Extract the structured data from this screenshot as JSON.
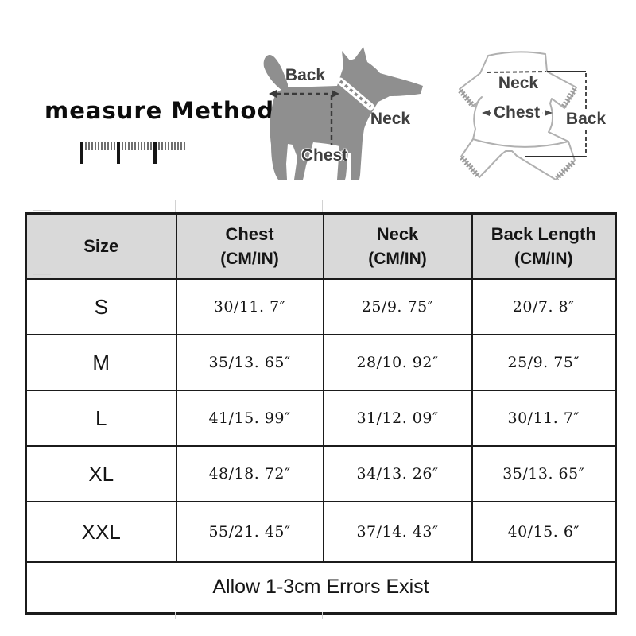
{
  "title": "measure Method",
  "diagram": {
    "dog": {
      "back_label": "Back",
      "neck_label": "Neck",
      "chest_label": "Chest"
    },
    "garment": {
      "neck_label": "Neck",
      "chest_label": "Chest",
      "back_label": "Back"
    }
  },
  "size_table": {
    "headers": [
      {
        "label": "Size",
        "sub": ""
      },
      {
        "label": "Chest",
        "sub": "(CM/IN)"
      },
      {
        "label": "Neck",
        "sub": "(CM/IN)"
      },
      {
        "label": "Back Length",
        "sub": "(CM/IN)"
      }
    ],
    "rows": [
      {
        "size": "S",
        "chest": "30/11. 7″",
        "neck": "25/9. 75″",
        "back_length": "20/7. 8″"
      },
      {
        "size": "M",
        "chest": "35/13. 65″",
        "neck": "28/10. 92″",
        "back_length": "25/9. 75″"
      },
      {
        "size": "L",
        "chest": "41/15. 99″",
        "neck": "31/12. 09″",
        "back_length": "30/11. 7″"
      },
      {
        "size": "XL",
        "chest": "48/18. 72″",
        "neck": "34/13. 26″",
        "back_length": "35/13. 65″"
      },
      {
        "size": "XXL",
        "chest": "55/21. 45″",
        "neck": "37/14. 43″",
        "back_length": "40/15. 6″"
      }
    ],
    "footnote": "Allow 1-3cm Errors Exist"
  },
  "colors": {
    "title_text": "#0c0c0c",
    "dog_silhouette": "#8f8f8f",
    "diagram_label": "#3f3f3f",
    "measure_line": "#3a3a3a",
    "garment_outline": "#b0b0b0",
    "garment_cuff": "#9a9a9a",
    "table_border": "#1b1b1b",
    "table_header_bg": "#d9d9d9"
  }
}
